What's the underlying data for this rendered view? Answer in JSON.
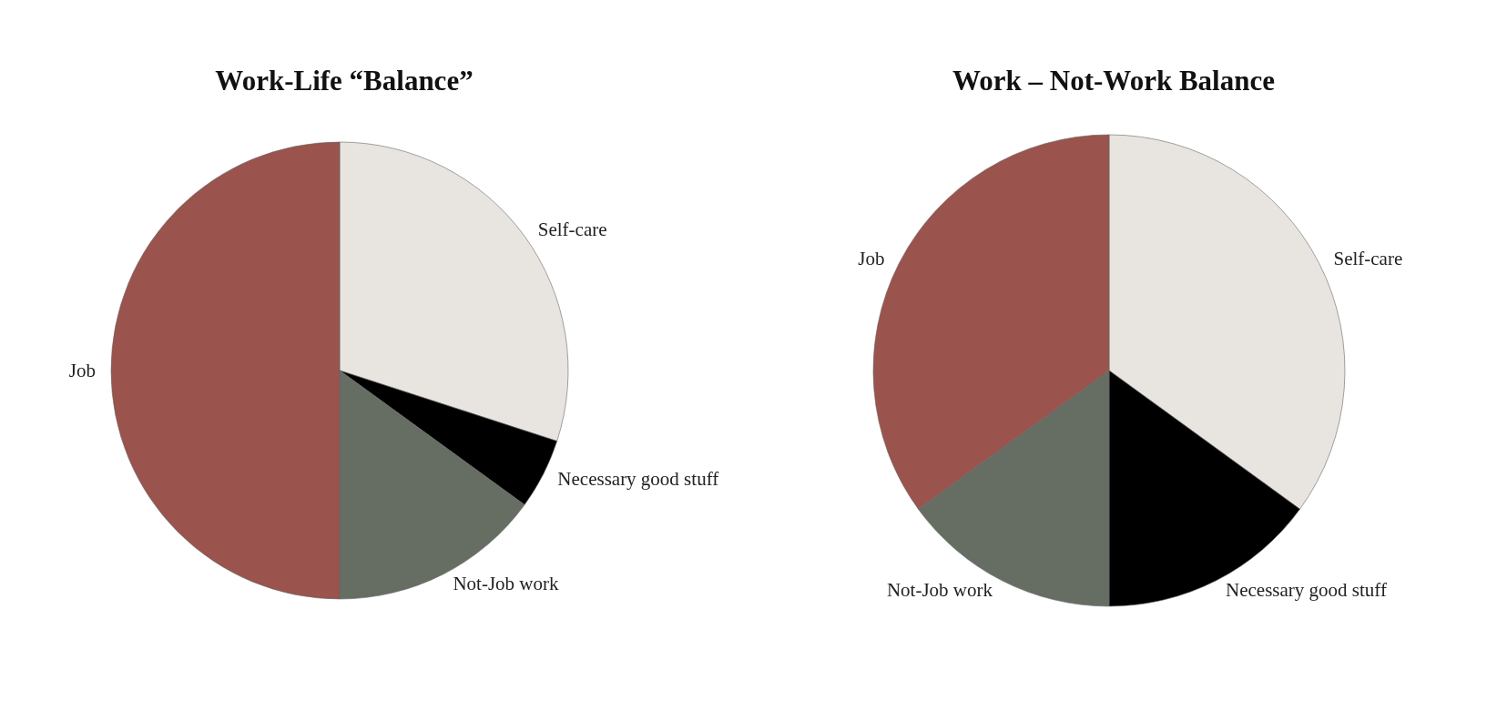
{
  "chart_data": [
    {
      "type": "pie",
      "title": "Work-Life “Balance”",
      "categories": [
        "Self-care",
        "Necessary good stuff",
        "Not-Job work",
        "Job"
      ],
      "values": [
        30,
        5,
        15,
        50
      ],
      "colors": [
        "#e8e5e0",
        "#000000",
        "#666e64",
        "#9b534d"
      ],
      "legend": false
    },
    {
      "type": "pie",
      "title": "Work – Not-Work Balance",
      "categories": [
        "Self-care",
        "Necessary good stuff",
        "Not-Job work",
        "Job"
      ],
      "values": [
        35,
        15,
        15,
        35
      ],
      "colors": [
        "#e8e5e0",
        "#000000",
        "#666e64",
        "#9b534d"
      ],
      "legend": false
    }
  ]
}
